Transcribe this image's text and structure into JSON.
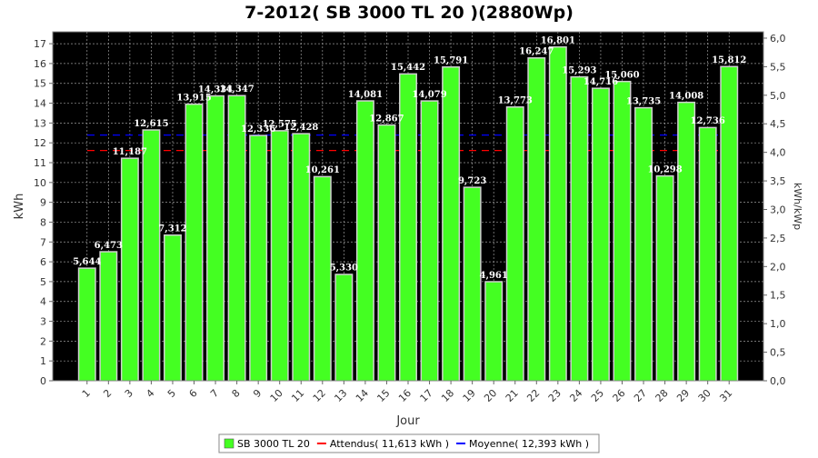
{
  "chart_data": {
    "type": "bar",
    "title": "7-2012( SB 3000 TL 20 )(2880Wp)",
    "xlabel": "Jour",
    "ylabel": "kWh",
    "ylabel_right": "kWh/kWp",
    "ylim": [
      0,
      17.6
    ],
    "yticks": [
      "0",
      "1",
      "2",
      "3",
      "4",
      "5",
      "6",
      "7",
      "8",
      "9",
      "10",
      "11",
      "12",
      "13",
      "14",
      "15",
      "16",
      "17"
    ],
    "y2lim": [
      0,
      6.111
    ],
    "y2ticks": [
      "0,0",
      "0,5",
      "1,0",
      "1,5",
      "2,0",
      "2,5",
      "3,0",
      "3,5",
      "4,0",
      "4,5",
      "5,0",
      "5,5",
      "6,0"
    ],
    "categories": [
      "1",
      "2",
      "3",
      "4",
      "5",
      "6",
      "7",
      "8",
      "9",
      "10",
      "11",
      "12",
      "13",
      "14",
      "15",
      "16",
      "17",
      "18",
      "19",
      "20",
      "21",
      "22",
      "23",
      "24",
      "25",
      "26",
      "27",
      "28",
      "29",
      "30",
      "31"
    ],
    "values": [
      5.644,
      6.473,
      11.187,
      12.615,
      7.312,
      13.915,
      14.334,
      14.347,
      12.336,
      12.575,
      12.428,
      10.261,
      5.33,
      14.081,
      12.867,
      15.442,
      14.079,
      15.791,
      9.723,
      4.961,
      13.773,
      16.247,
      16.801,
      15.293,
      14.716,
      15.06,
      13.735,
      10.298,
      14.008,
      12.736,
      15.812
    ],
    "value_labels": [
      "5,644",
      "6,473",
      "11,187",
      "12,615",
      "7,312",
      "13,915",
      "14,334",
      "14,347",
      "12,336",
      "12,575",
      "12,428",
      "10,261",
      "5,330",
      "14,081",
      "12,867",
      "15,442",
      "14,079",
      "15,791",
      "9,723",
      "4,961",
      "13,773",
      "16,247",
      "16,801",
      "15,293",
      "14,716",
      "15,060",
      "13,735",
      "10,298",
      "14,008",
      "12,736",
      "15,812"
    ],
    "reference_lines": [
      {
        "name": "Attendus",
        "value": 11.613,
        "color": "#ff0000"
      },
      {
        "name": "Moyenne",
        "value": 12.393,
        "color": "#0000ff"
      }
    ],
    "series_name": "SB 3000 TL 20",
    "bar_color": "#44ff22",
    "plot_background": "#000000",
    "grid": true,
    "legend_position": "bottom",
    "legend": [
      "SB 3000 TL 20",
      "Attendus( 11,613 kWh )",
      "Moyenne( 12,393 kWh )"
    ]
  }
}
